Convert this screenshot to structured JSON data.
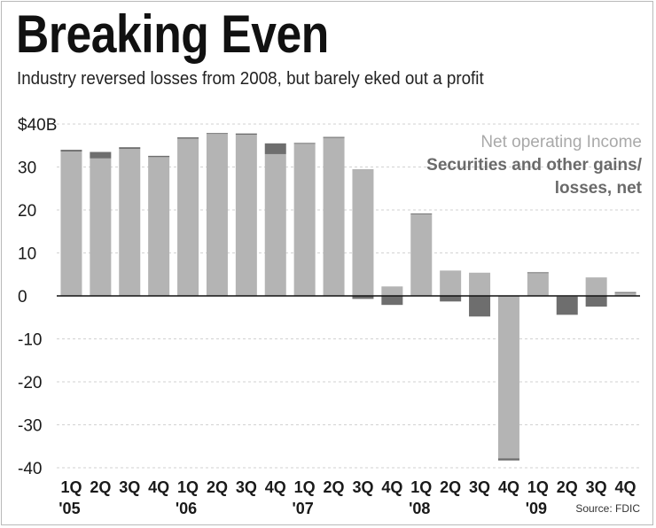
{
  "chart_data": {
    "type": "bar",
    "stacked": true,
    "title": "Breaking Even",
    "subtitle": "Industry reversed losses from 2008, but barely eked out a profit",
    "y_unit_label": "$40B",
    "ylim": [
      -40,
      40
    ],
    "yticks": [
      40,
      30,
      20,
      10,
      0,
      -10,
      -20,
      -30,
      -40
    ],
    "ytick_labels": [
      "$40B",
      "30",
      "20",
      "10",
      "0",
      "-10",
      "-20",
      "-30",
      "-40"
    ],
    "categories": [
      "1Q '05",
      "2Q '05",
      "3Q '05",
      "4Q '05",
      "1Q '06",
      "2Q '06",
      "3Q '06",
      "4Q '06",
      "1Q '07",
      "2Q '07",
      "3Q '07",
      "4Q '07",
      "1Q '08",
      "2Q '08",
      "3Q '08",
      "4Q '08",
      "1Q '09",
      "2Q '09",
      "3Q '09",
      "4Q '09"
    ],
    "quarter_labels": [
      "1Q",
      "2Q",
      "3Q",
      "4Q",
      "1Q",
      "2Q",
      "3Q",
      "4Q",
      "1Q",
      "2Q",
      "3Q",
      "4Q",
      "1Q",
      "2Q",
      "3Q",
      "4Q",
      "1Q",
      "2Q",
      "3Q",
      "4Q"
    ],
    "year_labels": [
      {
        "label": "'05",
        "index": 0
      },
      {
        "label": "'06",
        "index": 4
      },
      {
        "label": "'07",
        "index": 8
      },
      {
        "label": "'08",
        "index": 12
      },
      {
        "label": "'09",
        "index": 16
      }
    ],
    "series": [
      {
        "name": "Net operating Income",
        "color": "#b4b4b4",
        "values": [
          33.6,
          32.0,
          34.2,
          32.3,
          36.6,
          37.7,
          37.5,
          33.0,
          35.4,
          36.9,
          29.5,
          2.2,
          19.0,
          5.9,
          5.4,
          -37.8,
          5.3,
          -0.2,
          4.3,
          0.8
        ]
      },
      {
        "name": "Securities and other gains/ losses, net",
        "color": "#6e6e6e",
        "values": [
          0.4,
          1.5,
          0.4,
          0.3,
          0.3,
          0.2,
          0.3,
          2.5,
          0.2,
          0.1,
          -0.7,
          -2.1,
          0.2,
          -1.3,
          -4.8,
          -0.5,
          0.2,
          -4.2,
          -2.5,
          0.1
        ]
      }
    ],
    "legend": [
      "Net operating Income",
      "Securities and other gains/",
      "losses, net"
    ],
    "source": "Source: FDIC"
  }
}
